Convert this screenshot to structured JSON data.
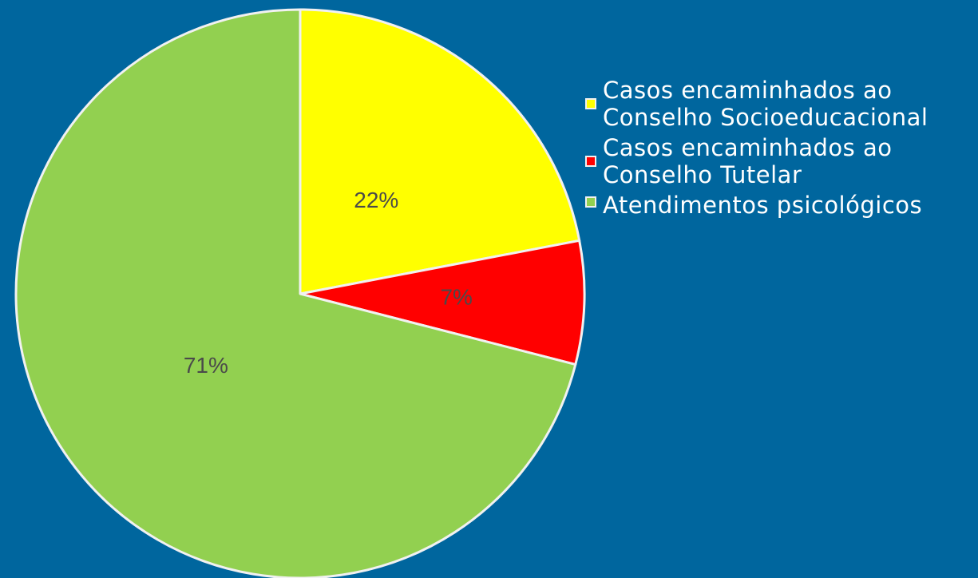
{
  "chart_data": {
    "type": "pie",
    "title": "",
    "series": [
      {
        "name": "Casos encaminhados ao Conselho Socioeducacional",
        "value": 22,
        "label": "22%",
        "color": "#ffff00"
      },
      {
        "name": "Casos encaminhados ao Conselho Tutelar",
        "value": 7,
        "label": "7%",
        "color": "#ff0000"
      },
      {
        "name": "Atendimentos psicológicos",
        "value": 71,
        "label": "71%",
        "color": "#92d050"
      }
    ],
    "legend_position": "right",
    "background_color": "#00669e",
    "slice_border_color": "#f1f1f1"
  }
}
